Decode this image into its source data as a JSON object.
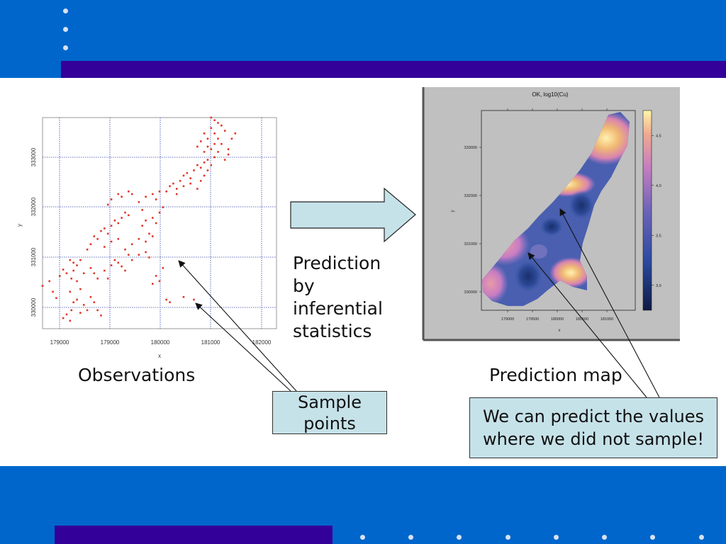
{
  "slide": {
    "observations_label": "Observations",
    "prediction_map_label": "Prediction map",
    "prediction_text_lines": [
      "Prediction",
      "by",
      "inferential",
      "statistics"
    ],
    "sample_box_lines": [
      "Sample",
      "points"
    ],
    "predict_box_lines": [
      "We can predict the values",
      "where we did not sample!"
    ]
  },
  "colors": {
    "band_blue": "#0066cc",
    "stripe_purple": "#330099",
    "callout_fill": "#c6e2e9",
    "point_red": "#e0382a",
    "grid_blue": "#3344aa"
  },
  "chart_data": [
    {
      "type": "scatter",
      "title": "",
      "xlabel": "x",
      "ylabel": "y",
      "x_ticks": [
        "179000",
        "179000",
        "180000",
        "181000",
        "182000"
      ],
      "y_ticks": [
        "330000",
        "331000",
        "332000",
        "333000"
      ],
      "xlim": [
        178600,
        182000
      ],
      "ylim": [
        329600,
        333600
      ],
      "grid": true,
      "points": [
        [
          178600,
          330410
        ],
        [
          178700,
          330500
        ],
        [
          178750,
          330300
        ],
        [
          178800,
          330180
        ],
        [
          178850,
          330600
        ],
        [
          178950,
          330650
        ],
        [
          178900,
          330720
        ],
        [
          179000,
          330900
        ],
        [
          179050,
          330850
        ],
        [
          179020,
          330550
        ],
        [
          179000,
          330300
        ],
        [
          179050,
          330100
        ],
        [
          179020,
          329950
        ],
        [
          178950,
          329870
        ],
        [
          178900,
          329800
        ],
        [
          179100,
          330500
        ],
        [
          179150,
          330350
        ],
        [
          179100,
          330150
        ],
        [
          179200,
          330050
        ],
        [
          179250,
          329950
        ],
        [
          179300,
          330200
        ],
        [
          179350,
          330100
        ],
        [
          179400,
          329950
        ],
        [
          179450,
          329850
        ],
        [
          179000,
          329750
        ],
        [
          179150,
          329900
        ],
        [
          179050,
          330700
        ],
        [
          179100,
          330800
        ],
        [
          179150,
          330900
        ],
        [
          179200,
          330650
        ],
        [
          179300,
          330750
        ],
        [
          179350,
          330650
        ],
        [
          179400,
          330550
        ],
        [
          179500,
          330700
        ],
        [
          179550,
          330550
        ],
        [
          179600,
          330800
        ],
        [
          179650,
          330900
        ],
        [
          179700,
          330850
        ],
        [
          179750,
          330780
        ],
        [
          179800,
          330700
        ],
        [
          179850,
          331000
        ],
        [
          179900,
          330900
        ],
        [
          180000,
          331000
        ],
        [
          180100,
          331050
        ],
        [
          180150,
          330950
        ],
        [
          180200,
          330450
        ],
        [
          180300,
          330500
        ],
        [
          180400,
          330150
        ],
        [
          180450,
          330100
        ],
        [
          179250,
          331100
        ],
        [
          179300,
          331200
        ],
        [
          179350,
          331350
        ],
        [
          179400,
          331300
        ],
        [
          179450,
          331450
        ],
        [
          179500,
          331500
        ],
        [
          179550,
          331400
        ],
        [
          179600,
          331550
        ],
        [
          179650,
          331650
        ],
        [
          179700,
          331600
        ],
        [
          179750,
          331700
        ],
        [
          179800,
          331800
        ],
        [
          179850,
          331750
        ],
        [
          179500,
          331150
        ],
        [
          179600,
          331250
        ],
        [
          179700,
          331300
        ],
        [
          179800,
          331100
        ],
        [
          179900,
          331200
        ],
        [
          180000,
          331300
        ],
        [
          180100,
          331250
        ],
        [
          180150,
          331400
        ],
        [
          180200,
          331350
        ],
        [
          180050,
          331550
        ],
        [
          180100,
          331650
        ],
        [
          180200,
          331700
        ],
        [
          180250,
          331600
        ],
        [
          180300,
          331800
        ],
        [
          180350,
          331900
        ],
        [
          180050,
          331850
        ],
        [
          180000,
          332000
        ],
        [
          180100,
          332100
        ],
        [
          180200,
          332150
        ],
        [
          180250,
          332050
        ],
        [
          180300,
          332200
        ],
        [
          179550,
          331950
        ],
        [
          179600,
          332050
        ],
        [
          179700,
          332150
        ],
        [
          179750,
          332100
        ],
        [
          179850,
          332200
        ],
        [
          179900,
          332150
        ],
        [
          180400,
          332200
        ],
        [
          180450,
          332300
        ],
        [
          180500,
          332350
        ],
        [
          180550,
          332250
        ],
        [
          180600,
          332400
        ],
        [
          180650,
          332500
        ],
        [
          180700,
          332550
        ],
        [
          180750,
          332450
        ],
        [
          180800,
          332600
        ],
        [
          180850,
          332700
        ],
        [
          180900,
          332650
        ],
        [
          180950,
          332750
        ],
        [
          181000,
          332800
        ],
        [
          180550,
          332150
        ],
        [
          180650,
          332300
        ],
        [
          180750,
          332350
        ],
        [
          180850,
          332250
        ],
        [
          180900,
          332400
        ],
        [
          180950,
          332500
        ],
        [
          181000,
          332600
        ],
        [
          181050,
          332700
        ],
        [
          181100,
          332850
        ],
        [
          181150,
          332950
        ],
        [
          181050,
          333000
        ],
        [
          181100,
          333100
        ],
        [
          181000,
          333200
        ],
        [
          180950,
          333300
        ],
        [
          181050,
          333400
        ],
        [
          181100,
          333300
        ],
        [
          181150,
          333200
        ],
        [
          181200,
          333100
        ],
        [
          181300,
          333000
        ],
        [
          181350,
          333200
        ],
        [
          181250,
          333350
        ],
        [
          181200,
          333450
        ],
        [
          181100,
          333550
        ],
        [
          181050,
          333600
        ],
        [
          181000,
          333050
        ],
        [
          180900,
          333150
        ],
        [
          180850,
          333050
        ],
        [
          180950,
          332950
        ],
        [
          181150,
          333500
        ],
        [
          181250,
          332800
        ],
        [
          181300,
          332900
        ],
        [
          181400,
          333300
        ],
        [
          180350,
          330750
        ],
        [
          180250,
          330600
        ],
        [
          180650,
          330200
        ],
        [
          180800,
          330150
        ]
      ]
    },
    {
      "type": "heatmap",
      "title": "OK, log10(Cu)",
      "xlabel": "x",
      "ylabel": "y",
      "x_ticks": [
        "179000",
        "179500",
        "180000",
        "180500",
        "181000"
      ],
      "y_ticks": [
        "330000",
        "331000",
        "332000",
        "333000"
      ],
      "colorbar_ticks": [
        "3.0",
        "3.5",
        "4.0",
        "4.5"
      ],
      "colorbar_range": [
        2.75,
        4.75
      ]
    }
  ]
}
